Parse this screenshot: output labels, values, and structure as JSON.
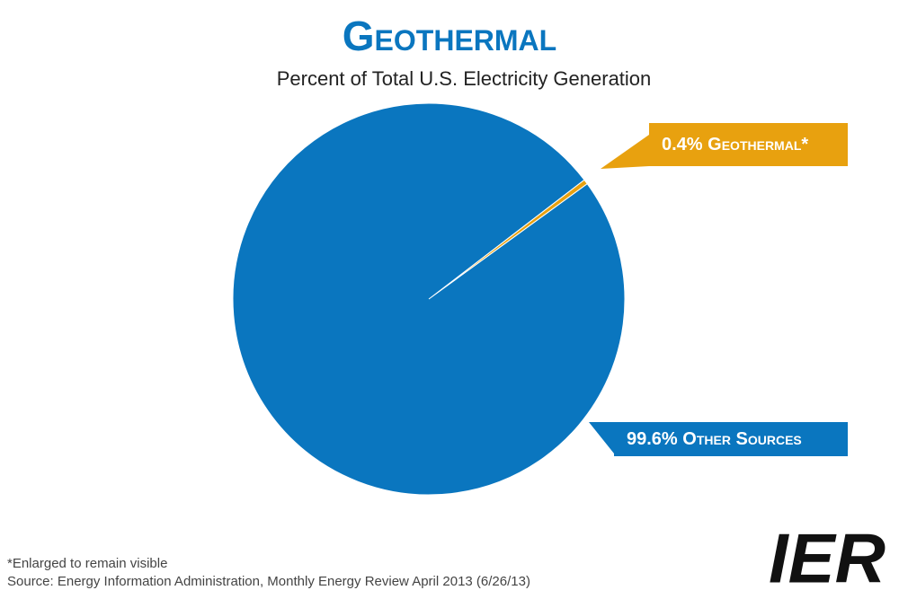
{
  "chart_data": {
    "type": "pie",
    "title": "Geothermal",
    "subtitle": "Percent of Total U.S. Electricity Generation",
    "categories": [
      "Geothermal*",
      "Other Sources"
    ],
    "values": [
      0.4,
      99.6
    ],
    "value_labels": [
      "0.4%",
      "99.6%"
    ],
    "colors": [
      "#e8a10f",
      "#0a76bf"
    ],
    "footnote": "*Enlarged to remain visible",
    "source": "Source: Energy Information Administration, Monthly Energy Review April 2013 (6/26/13)",
    "logo": "IER"
  }
}
